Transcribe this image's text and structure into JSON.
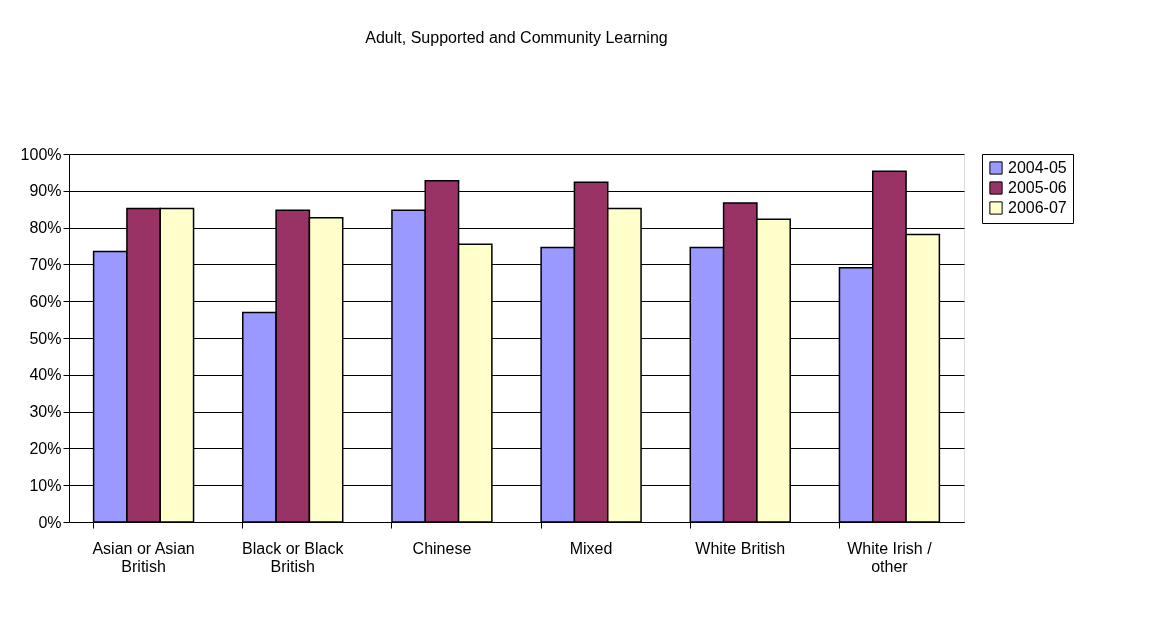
{
  "chart_data": {
    "type": "bar",
    "title": "Adult, Supported and Community Learning",
    "categories": [
      "Asian or Asian British",
      "Black or Black British",
      "Chinese",
      "Mixed",
      "White British",
      "White Irish / other"
    ],
    "series": [
      {
        "name": "2004-05",
        "color": "#9999ff",
        "values": [
          73.5,
          56.9,
          84.7,
          74.6,
          74.6,
          69.1
        ]
      },
      {
        "name": "2005-06",
        "color": "#993366",
        "values": [
          85.2,
          84.7,
          92.7,
          92.3,
          86.7,
          95.3
        ]
      },
      {
        "name": "2006-07",
        "color": "#ffffcc",
        "values": [
          85.2,
          82.7,
          75.5,
          85.2,
          82.3,
          78.1
        ]
      }
    ],
    "ylim": [
      0,
      100
    ],
    "yticks": [
      {
        "value": 0,
        "label": "0%"
      },
      {
        "value": 10,
        "label": "10%"
      },
      {
        "value": 20,
        "label": "20%"
      },
      {
        "value": 30,
        "label": "30%"
      },
      {
        "value": 40,
        "label": "40%"
      },
      {
        "value": 50,
        "label": "50%"
      },
      {
        "value": 60,
        "label": "60%"
      },
      {
        "value": 70,
        "label": "70%"
      },
      {
        "value": 80,
        "label": "80%"
      },
      {
        "value": 90,
        "label": "90%"
      },
      {
        "value": 100,
        "label": "100%"
      }
    ],
    "grid": "y",
    "legend": "right"
  }
}
